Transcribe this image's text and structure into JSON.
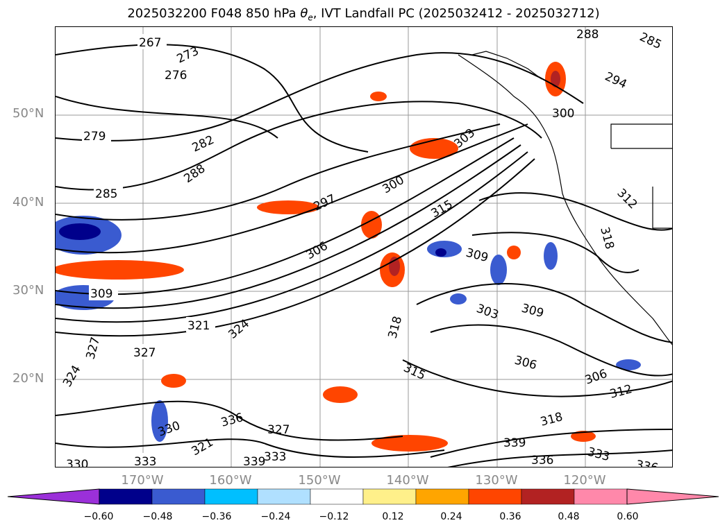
{
  "title": {
    "prefix": "2025032200 F048 850 hPa ",
    "theta": "θ",
    "sub": "e",
    "suffix": ", IVT Landfall PC (2025032412 - 2025032712)"
  },
  "axes": {
    "lat_labels": [
      "50°N",
      "40°N",
      "30°N",
      "20°N"
    ],
    "lon_labels": [
      "170°W",
      "160°W",
      "150°W",
      "140°W",
      "130°W",
      "120°W"
    ]
  },
  "contour_labels": [
    "267",
    "273",
    "276",
    "279",
    "282",
    "288",
    "285",
    "288",
    "285",
    "294",
    "300",
    "303",
    "300",
    "297",
    "315",
    "306",
    "309",
    "309",
    "303",
    "309",
    "318",
    "306",
    "315",
    "306",
    "312",
    "318",
    "321",
    "324",
    "327",
    "327",
    "324",
    "330",
    "336",
    "321",
    "327",
    "333",
    "339",
    "333",
    "336",
    "339",
    "333",
    "330",
    "336",
    "312",
    "318"
  ],
  "colorbar": {
    "ticks": [
      "−0.60",
      "−0.48",
      "−0.36",
      "−0.24",
      "−0.12",
      "0.12",
      "0.24",
      "0.36",
      "0.48",
      "0.60"
    ],
    "colors": {
      "under": "#9b30d9",
      "bins": [
        "#00008b",
        "#3a5bd0",
        "#00bfff",
        "#b0e0ff",
        "#ffffff",
        "#fff08a",
        "#ffa500",
        "#ff4500",
        "#b22222",
        "#ff88aa"
      ],
      "over": "#ff88aa"
    }
  }
}
